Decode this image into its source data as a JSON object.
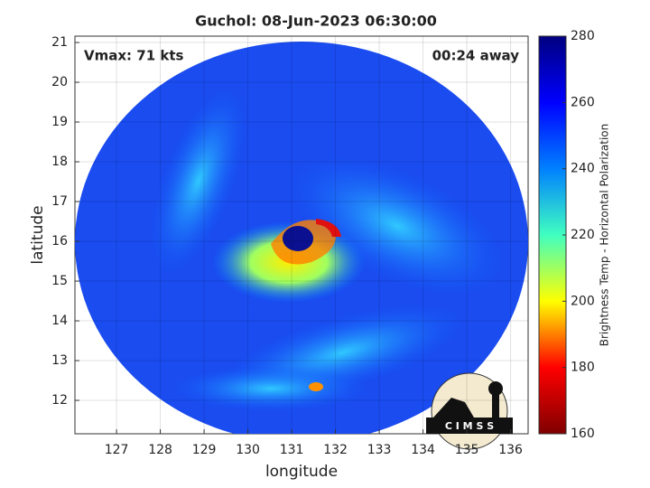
{
  "chart_data": {
    "type": "map",
    "title": "Guchol: 08-Jun-2023 06:30:00",
    "annotations": [
      "Vmax: 71 kts",
      "00:24 away"
    ],
    "x_label": "longitude",
    "y_label": "latitude",
    "xlim": [
      126.05,
      136.4
    ],
    "xticks": [
      127,
      128,
      129,
      130,
      131,
      132,
      133,
      134,
      135,
      136
    ],
    "ylim": [
      11.16,
      21.16
    ],
    "yticks": [
      12,
      13,
      14,
      15,
      16,
      17,
      18,
      19,
      20,
      21
    ],
    "grid": true,
    "colorbar_label": "Brightness Temp - Horizontal Polarization",
    "clim": [
      160,
      280
    ],
    "cticks": [
      160,
      180,
      200,
      220,
      240,
      260,
      280
    ],
    "colormap": [
      "#800000",
      "#ff0000",
      "#ffff00",
      "#40ffc0",
      "#0080ff",
      "#0000ff",
      "#000080"
    ],
    "logo": "C I M S S"
  }
}
